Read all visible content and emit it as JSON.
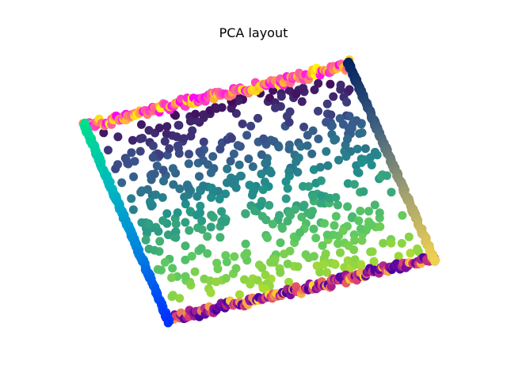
{
  "chart_data": {
    "type": "scatter",
    "title": "PCA layout",
    "xlabel": "",
    "ylabel": "",
    "axes_visible": false,
    "grid": false,
    "legend": "none",
    "colormaps": {
      "interior": [
        "#440154",
        "#3b528b",
        "#21918c",
        "#5ec962",
        "#b5de2b"
      ],
      "top_band": [
        "#ff00ff",
        "#ff4fb0",
        "#ffa040",
        "#ffff00"
      ],
      "left_band": [
        "#00e08a",
        "#00b8c0",
        "#0080e0",
        "#0030ff"
      ],
      "bottom_band": [
        "#ffd830",
        "#e04070",
        "#8010a0",
        "#4000a0"
      ],
      "right_band": [
        "#002060",
        "#406080",
        "#a0a070",
        "#f0d050"
      ]
    },
    "corners": {
      "top_left": [
        0.0,
        1.0
      ],
      "top_right": [
        1.0,
        1.0
      ],
      "bottom_right": [
        1.0,
        0.0
      ],
      "bottom_left": [
        0.0,
        0.0
      ]
    },
    "counts": {
      "interior": 520,
      "per_band": 180
    }
  }
}
